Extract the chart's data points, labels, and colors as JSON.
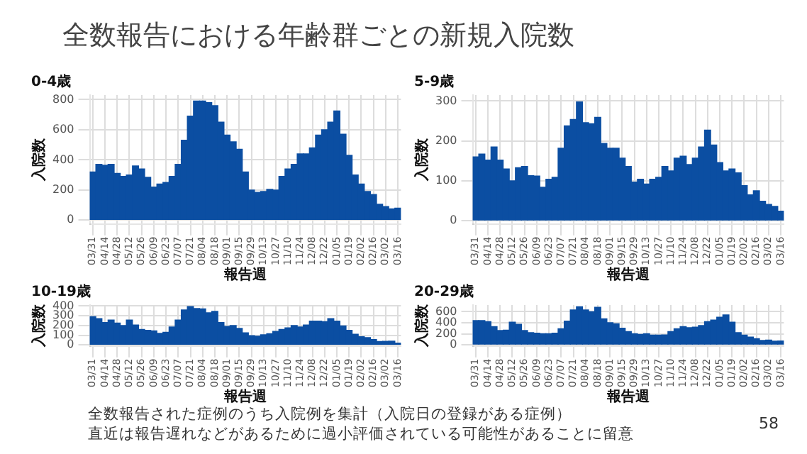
{
  "chart_data": [
    {
      "type": "other",
      "title": "全数報告における年齢群ごとの新規入院数",
      "annotations": [
        "全数報告された症例のうち入院例を集計（入院日の登録がある症例）",
        "直近は報告遅れなどがあるために過小評価されている可能性があることに留意",
        "58"
      ]
    },
    {
      "type": "bar",
      "title": "0-4歳",
      "xlabel": "報告週",
      "ylabel": "入院数",
      "color": "#0b4ea2",
      "grid": true,
      "legend": false,
      "ylim": [
        -25,
        830
      ],
      "yticks": [
        0,
        200,
        400,
        600,
        800
      ],
      "categories": [
        "03/31",
        null,
        "04/14",
        null,
        "04/28",
        null,
        "05/12",
        null,
        "05/26",
        null,
        "06/09",
        null,
        "06/23",
        null,
        "07/07",
        null,
        "07/21",
        null,
        "08/04",
        null,
        "08/18",
        null,
        "09/01",
        null,
        "09/15",
        null,
        "09/29",
        null,
        "10/13",
        null,
        "10/27",
        null,
        "11/10",
        null,
        "11/24",
        null,
        "12/08",
        null,
        "12/22",
        null,
        "01/05",
        null,
        "01/19",
        null,
        "02/02",
        null,
        "02/16",
        null,
        "03/02",
        null,
        "03/16"
      ],
      "values": [
        320,
        370,
        365,
        370,
        310,
        290,
        300,
        360,
        340,
        285,
        220,
        240,
        250,
        290,
        370,
        530,
        690,
        790,
        790,
        780,
        760,
        650,
        565,
        520,
        470,
        320,
        200,
        185,
        190,
        205,
        200,
        290,
        340,
        370,
        440,
        440,
        480,
        565,
        600,
        650,
        725,
        570,
        430,
        300,
        240,
        190,
        170,
        105,
        90,
        75,
        80
      ]
    },
    {
      "type": "bar",
      "title": "5-9歳",
      "xlabel": "報告週",
      "ylabel": "入院数",
      "color": "#0b4ea2",
      "grid": true,
      "legend": false,
      "ylim": [
        -8,
        315
      ],
      "yticks": [
        0,
        100,
        200,
        300
      ],
      "categories": [
        "03/31",
        null,
        "04/14",
        null,
        "04/28",
        null,
        "05/12",
        null,
        "05/26",
        null,
        "06/09",
        null,
        "06/23",
        null,
        "07/07",
        null,
        "07/21",
        null,
        "08/04",
        null,
        "08/18",
        null,
        "09/01",
        null,
        "09/15",
        null,
        "09/29",
        null,
        "10/13",
        null,
        "10/27",
        null,
        "11/10",
        null,
        "11/24",
        null,
        "12/08",
        null,
        "12/22",
        null,
        "01/05",
        null,
        "01/19",
        null,
        "02/02",
        null,
        "02/16",
        null,
        "03/02",
        null,
        "03/16"
      ],
      "values": [
        160,
        167,
        152,
        185,
        152,
        130,
        100,
        133,
        136,
        113,
        112,
        84,
        104,
        109,
        182,
        238,
        254,
        298,
        246,
        243,
        259,
        194,
        182,
        182,
        157,
        136,
        97,
        104,
        92,
        104,
        109,
        136,
        125,
        157,
        162,
        141,
        157,
        185,
        227,
        190,
        146,
        125,
        130,
        120,
        88,
        65,
        75,
        49,
        41,
        36,
        24
      ]
    },
    {
      "type": "bar",
      "title": "10-19歳",
      "xlabel": "報告週",
      "ylabel": "入院数",
      "color": "#0b4ea2",
      "grid": true,
      "legend": false,
      "ylim": [
        -10,
        410
      ],
      "yticks": [
        0,
        100,
        200,
        300,
        400
      ],
      "categories": [
        "03/31",
        null,
        "04/14",
        null,
        "04/28",
        null,
        "05/12",
        null,
        "05/26",
        null,
        "06/09",
        null,
        "06/23",
        null,
        "07/07",
        null,
        "07/21",
        null,
        "08/04",
        null,
        "08/18",
        null,
        "09/01",
        null,
        "09/15",
        null,
        "09/29",
        null,
        "10/13",
        null,
        "10/27",
        null,
        "11/10",
        null,
        "11/24",
        null,
        "12/08",
        null,
        "12/22",
        null,
        "01/05",
        null,
        "01/19",
        null,
        "02/02",
        null,
        "02/16",
        null,
        "03/02",
        null,
        "03/16"
      ],
      "values": [
        290,
        270,
        230,
        255,
        225,
        200,
        255,
        205,
        160,
        150,
        145,
        120,
        130,
        185,
        255,
        360,
        395,
        375,
        370,
        330,
        345,
        230,
        190,
        200,
        170,
        125,
        95,
        90,
        105,
        115,
        140,
        160,
        175,
        200,
        185,
        205,
        245,
        245,
        240,
        270,
        245,
        195,
        150,
        110,
        85,
        75,
        55,
        35,
        38,
        40,
        20
      ]
    },
    {
      "type": "bar",
      "title": "20-29歳",
      "xlabel": "報告週",
      "ylabel": "入院数",
      "color": "#0b4ea2",
      "grid": true,
      "legend": false,
      "ylim": [
        -20,
        720
      ],
      "yticks": [
        0,
        200,
        400,
        600
      ],
      "categories": [
        "03/31",
        null,
        "04/14",
        null,
        "04/28",
        null,
        "05/12",
        null,
        "05/26",
        null,
        "06/09",
        null,
        "06/23",
        null,
        "07/07",
        null,
        "07/21",
        null,
        "08/04",
        null,
        "08/18",
        null,
        "09/01",
        null,
        "09/15",
        null,
        "09/29",
        null,
        "10/13",
        null,
        "10/27",
        null,
        "11/10",
        null,
        "11/24",
        null,
        "12/08",
        null,
        "12/22",
        null,
        "01/05",
        null,
        "01/19",
        null,
        "02/02",
        null,
        "02/16",
        null,
        "03/02",
        null,
        "03/16"
      ],
      "values": [
        440,
        440,
        420,
        330,
        260,
        265,
        410,
        370,
        260,
        220,
        210,
        200,
        200,
        210,
        290,
        430,
        630,
        690,
        630,
        600,
        680,
        470,
        400,
        380,
        300,
        240,
        200,
        190,
        200,
        175,
        175,
        180,
        240,
        290,
        330,
        310,
        320,
        350,
        420,
        450,
        500,
        540,
        410,
        220,
        175,
        140,
        110,
        80,
        85,
        65,
        70
      ]
    }
  ]
}
